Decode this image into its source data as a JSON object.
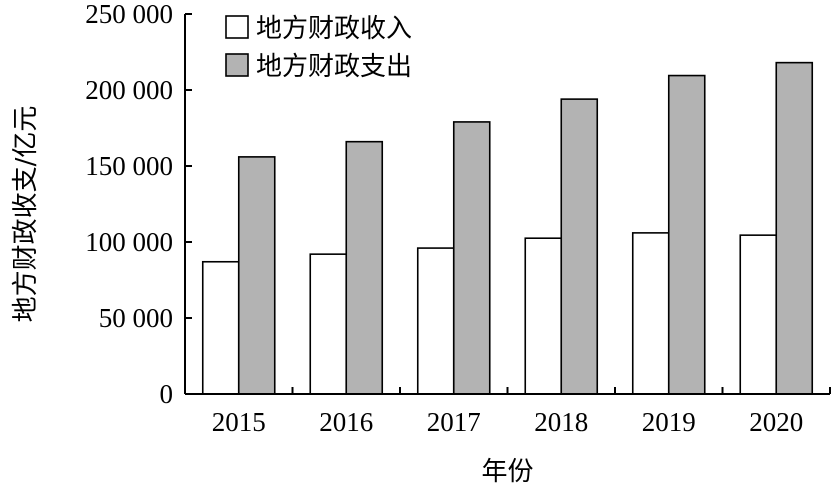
{
  "chart_data": {
    "type": "bar",
    "categories": [
      "2015",
      "2016",
      "2017",
      "2018",
      "2019",
      "2020"
    ],
    "series": [
      {
        "name": "地方财政收入",
        "values": [
          87000,
          92000,
          96000,
          102500,
          106000,
          104500
        ],
        "color": "#ffffff"
      },
      {
        "name": "地方财政支出",
        "values": [
          156000,
          166000,
          179000,
          194000,
          209500,
          218000
        ],
        "color": "#b3b3b3"
      }
    ],
    "title": "",
    "xlabel": "年份",
    "ylabel": "地方财政收支/亿元",
    "ylim": [
      0,
      250000
    ],
    "yticks": [
      0,
      50000,
      100000,
      150000,
      200000,
      250000
    ],
    "ytick_labels": [
      "0",
      "50 000",
      "100 000",
      "150 000",
      "200 000",
      "250 000"
    ],
    "grid": false,
    "legend_position": "top-left"
  }
}
